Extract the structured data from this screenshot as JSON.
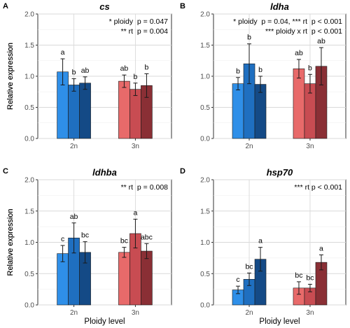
{
  "figure": {
    "ylabel": "Relative expression",
    "xlabel": "Ploidy level"
  },
  "colors": {
    "2n": [
      "#2f8fe8",
      "#1f6fc0",
      "#144a86"
    ],
    "3n": [
      "#e86a6a",
      "#c84c52",
      "#8a2f35"
    ]
  },
  "chart_data": [
    {
      "type": "bar",
      "panel_label": "A",
      "title": "cs",
      "categories": [
        "2n",
        "3n"
      ],
      "ylim": [
        0,
        2.0
      ],
      "yticks": [
        "0.0",
        "0.5",
        "1.0",
        "1.5",
        "2.0"
      ],
      "grid": true,
      "series": [
        {
          "values": [
            1.07,
            0.92
          ],
          "errors": [
            0.21,
            0.1
          ],
          "letters": [
            "a",
            "ab"
          ]
        },
        {
          "values": [
            0.86,
            0.79
          ],
          "errors": [
            0.1,
            0.1
          ],
          "letters": [
            "b",
            "b"
          ]
        },
        {
          "values": [
            0.89,
            0.85
          ],
          "errors": [
            0.1,
            0.19
          ],
          "letters": [
            "ab",
            "b"
          ]
        }
      ],
      "annotations": [
        "* ploidy  p = 0.047",
        "** rt  p = 0.004"
      ]
    },
    {
      "type": "bar",
      "panel_label": "B",
      "title": "ldha",
      "categories": [
        "2n",
        "3n"
      ],
      "ylim": [
        0,
        2.0
      ],
      "yticks": [
        "0.0",
        "0.5",
        "1.0",
        "1.5",
        "2.0"
      ],
      "grid": true,
      "series": [
        {
          "values": [
            0.88,
            1.12
          ],
          "errors": [
            0.1,
            0.15
          ],
          "letters": [
            "b",
            "ab"
          ]
        },
        {
          "values": [
            1.2,
            0.88
          ],
          "errors": [
            0.32,
            0.15
          ],
          "letters": [
            "b",
            "b"
          ]
        },
        {
          "values": [
            0.87,
            1.16
          ],
          "errors": [
            0.13,
            0.3
          ],
          "letters": [
            "b",
            "ab"
          ]
        }
      ],
      "annotations": [
        "* ploidy  p = 0.04, *** rt  p < 0.001",
        "*** ploidy x rt  p < 0.001"
      ]
    },
    {
      "type": "bar",
      "panel_label": "C",
      "title": "ldhba",
      "categories": [
        "2n",
        "3n"
      ],
      "ylim": [
        0,
        2.0
      ],
      "yticks": [
        "0.0",
        "0.5",
        "1.0",
        "1.5",
        "2.0"
      ],
      "grid": true,
      "series": [
        {
          "values": [
            0.82,
            0.84
          ],
          "errors": [
            0.13,
            0.08
          ],
          "letters": [
            "c",
            "bc"
          ]
        },
        {
          "values": [
            1.07,
            1.14
          ],
          "errors": [
            0.24,
            0.23
          ],
          "letters": [
            "ab",
            "a"
          ]
        },
        {
          "values": [
            0.84,
            0.86
          ],
          "errors": [
            0.17,
            0.12
          ],
          "letters": [
            "bc",
            "abc"
          ]
        }
      ],
      "annotations": [
        "** rt  p = 0.008"
      ]
    },
    {
      "type": "bar",
      "panel_label": "D",
      "title": "hsp70",
      "categories": [
        "2n",
        "3n"
      ],
      "ylim": [
        0,
        2.0
      ],
      "yticks": [
        "0.0",
        "0.5",
        "1.0",
        "1.5",
        "2.0"
      ],
      "grid": true,
      "series": [
        {
          "values": [
            0.24,
            0.27
          ],
          "errors": [
            0.06,
            0.1
          ],
          "letters": [
            "c",
            "bc"
          ]
        },
        {
          "values": [
            0.41,
            0.27
          ],
          "errors": [
            0.1,
            0.06
          ],
          "letters": [
            "bc",
            "bc"
          ]
        },
        {
          "values": [
            0.73,
            0.68
          ],
          "errors": [
            0.19,
            0.12
          ],
          "letters": [
            "a",
            "a"
          ]
        }
      ],
      "annotations": [
        "*** rt p < 0.001"
      ]
    }
  ]
}
